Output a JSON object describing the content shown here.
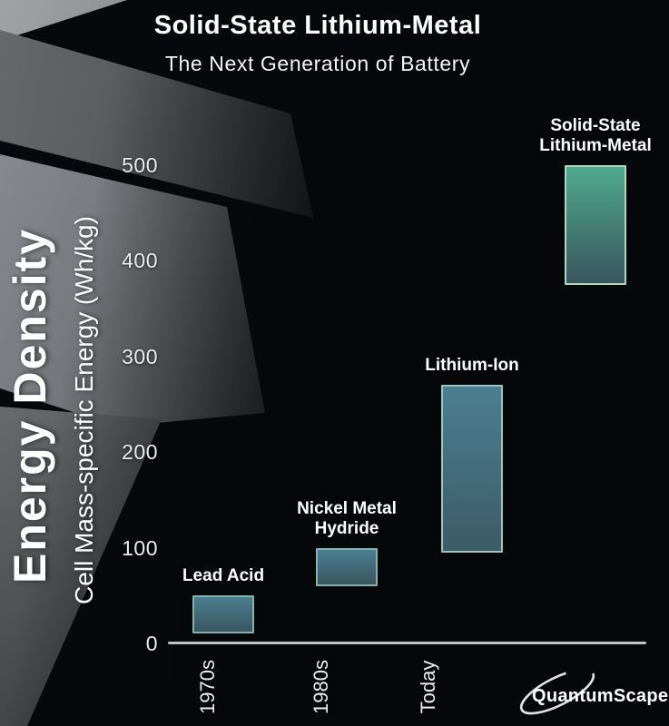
{
  "header": {
    "title": "Solid-State Lithium-Metal",
    "subtitle": "The Next Generation of Battery"
  },
  "y_axis": {
    "group_label": "Energy Density",
    "axis_label": "Cell Mass-specific Energy (Wh/kg)"
  },
  "brand": {
    "name": "QuantumScape"
  },
  "chart_data": {
    "type": "bar",
    "subtype": "floating-range-bars",
    "title": "Solid-State Lithium-Metal",
    "subtitle": "The Next Generation of Battery",
    "ylabel": "Cell Mass-specific Energy (Wh/kg)",
    "units": "Wh/kg",
    "ylim": [
      0,
      520
    ],
    "yticks": [
      0,
      100,
      200,
      300,
      400,
      500
    ],
    "grid": false,
    "legend": "none",
    "categories": [
      "1970s",
      "1980s",
      "Today",
      null
    ],
    "series": [
      {
        "name": "Lead Acid",
        "label_lines": [
          "Lead Acid"
        ],
        "x_label": "1970s",
        "low": 10,
        "high": 50,
        "color_top": "#4b7f90",
        "color_bottom": "#3a5560",
        "border_color": "#83b3ab"
      },
      {
        "name": "Nickel Metal Hydride",
        "label_lines": [
          "Nickel Metal",
          "Hydride"
        ],
        "x_label": "1980s",
        "low": 60,
        "high": 100,
        "color_top": "#4b7f90",
        "color_bottom": "#3a5560",
        "border_color": "#83b3ab"
      },
      {
        "name": "Lithium-Ion",
        "label_lines": [
          "Lithium-Ion"
        ],
        "x_label": "Today",
        "low": 95,
        "high": 270,
        "color_top": "#4b7f90",
        "color_bottom": "#3d5a68",
        "border_color": "#9cc6bd"
      },
      {
        "name": "Solid-State Lithium-Metal",
        "label_lines": [
          "Solid-State",
          "Lithium-Metal"
        ],
        "x_label": null,
        "low": 375,
        "high": 500,
        "color_top": "#50a98b",
        "color_bottom": "#3a5660",
        "border_color": "#aad8c0"
      }
    ]
  }
}
